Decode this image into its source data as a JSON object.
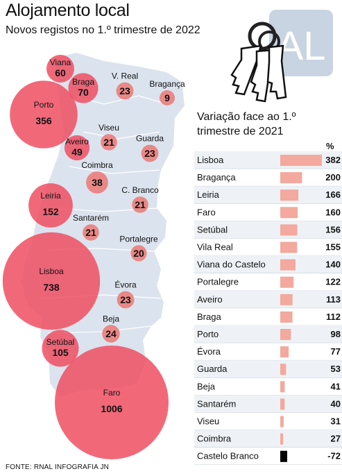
{
  "header": {
    "title": "Alojamento local",
    "subtitle": "Novos registos no 1.º trimestre de 2022"
  },
  "colors": {
    "bubble": "#ef4f62",
    "bubble_small": "#e98886",
    "map_land": "#dbe3ee",
    "bar": "#f3a99d",
    "bar_negative": "#000000",
    "row_shade": "#eef2f6",
    "keys_tag": "#c9d4e2"
  },
  "keys_tag_text": "AL",
  "chart_data": [
    {
      "type": "bubble-map",
      "title": "Novos registos no 1.º trimestre de 2022",
      "points": [
        {
          "name": "Viana",
          "value": 60
        },
        {
          "name": "Braga",
          "value": 70
        },
        {
          "name": "V. Real",
          "value": 23
        },
        {
          "name": "Bragança",
          "value": 9
        },
        {
          "name": "Porto",
          "value": 356
        },
        {
          "name": "Viseu",
          "value": 21
        },
        {
          "name": "Guarda",
          "value": 23
        },
        {
          "name": "Aveiro",
          "value": 49
        },
        {
          "name": "Coimbra",
          "value": 38
        },
        {
          "name": "C. Branco",
          "value": 21
        },
        {
          "name": "Leiria",
          "value": 152
        },
        {
          "name": "Santarém",
          "value": 21
        },
        {
          "name": "Portalegre",
          "value": 20
        },
        {
          "name": "Lisboa",
          "value": 738
        },
        {
          "name": "Évora",
          "value": 23
        },
        {
          "name": "Beja",
          "value": 24
        },
        {
          "name": "Setúbal",
          "value": 105
        },
        {
          "name": "Faro",
          "value": 1006
        }
      ]
    },
    {
      "type": "bar",
      "title": "Variação face ao 1.º trimestre de 2021",
      "unit": "%",
      "categories": [
        "Lisboa",
        "Bragança",
        "Leiria",
        "Faro",
        "Setúbal",
        "Vila Real",
        "Viana do Castelo",
        "Portalegre",
        "Aveiro",
        "Braga",
        "Porto",
        "Évora",
        "Guarda",
        "Beja",
        "Santarém",
        "Viseu",
        "Coimbra",
        "Castelo Branco"
      ],
      "values": [
        382,
        200,
        166,
        160,
        156,
        155,
        140,
        122,
        113,
        112,
        98,
        77,
        53,
        41,
        40,
        31,
        27,
        -72
      ]
    }
  ],
  "footer": {
    "source": "FONTE: RNAL    INFOGRAFIA JN"
  }
}
